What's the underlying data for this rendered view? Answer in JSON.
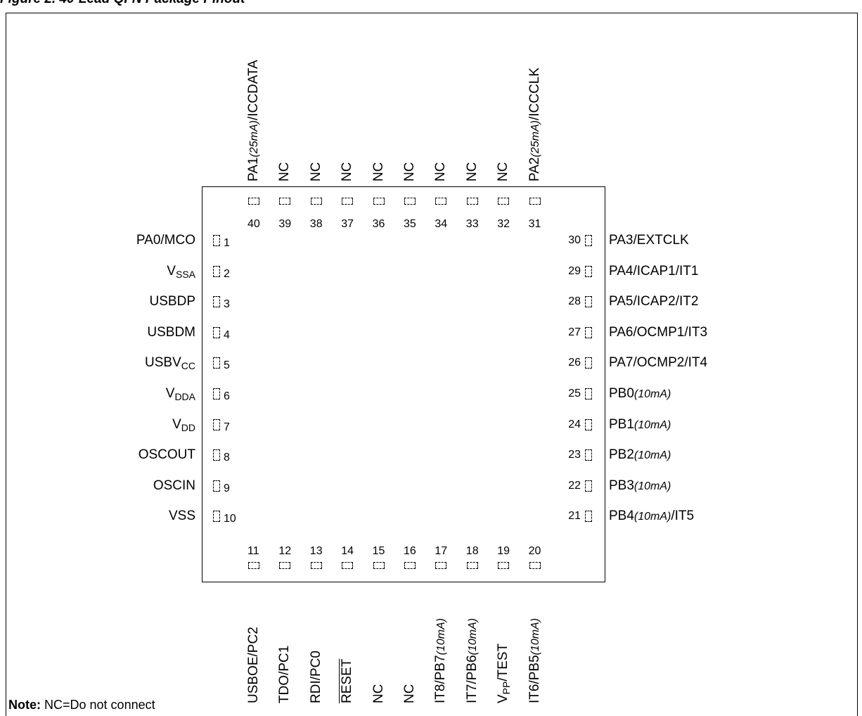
{
  "figure_title": "Figure 2. 40-Lead QFN Package Pinout",
  "note": {
    "label": "Note:",
    "text": "NC=Do not connect"
  },
  "pins": {
    "left": [
      {
        "num": "1",
        "parts": [
          [
            "PA0/MCO",
            ""
          ]
        ]
      },
      {
        "num": "2",
        "parts": [
          [
            "V",
            ""
          ],
          [
            "SSA",
            "sub"
          ]
        ]
      },
      {
        "num": "3",
        "parts": [
          [
            "USBDP",
            ""
          ]
        ]
      },
      {
        "num": "4",
        "parts": [
          [
            "USBDM",
            ""
          ]
        ]
      },
      {
        "num": "5",
        "parts": [
          [
            "USBV",
            ""
          ],
          [
            "CC",
            "sub"
          ]
        ]
      },
      {
        "num": "6",
        "parts": [
          [
            "V",
            ""
          ],
          [
            "DDA",
            "sub"
          ]
        ]
      },
      {
        "num": "7",
        "parts": [
          [
            "V",
            ""
          ],
          [
            "DD",
            "sub"
          ]
        ]
      },
      {
        "num": "8",
        "parts": [
          [
            "OSCOUT",
            ""
          ]
        ]
      },
      {
        "num": "9",
        "parts": [
          [
            "OSCIN",
            ""
          ]
        ]
      },
      {
        "num": "10",
        "parts": [
          [
            "VSS",
            ""
          ]
        ]
      }
    ],
    "bottom": [
      {
        "num": "11",
        "parts": [
          [
            "USBOE/PC2",
            ""
          ]
        ]
      },
      {
        "num": "12",
        "parts": [
          [
            "TDO/PC1",
            ""
          ]
        ]
      },
      {
        "num": "13",
        "parts": [
          [
            "RDI/PC0",
            ""
          ]
        ]
      },
      {
        "num": "14",
        "parts": [
          [
            "RESET",
            "ovl"
          ]
        ]
      },
      {
        "num": "15",
        "parts": [
          [
            "NC",
            ""
          ]
        ]
      },
      {
        "num": "16",
        "parts": [
          [
            "NC",
            ""
          ]
        ]
      },
      {
        "num": "17",
        "parts": [
          [
            "IT8/PB7",
            ""
          ],
          [
            "(10mA)",
            "it"
          ]
        ]
      },
      {
        "num": "18",
        "parts": [
          [
            "IT7/PB6",
            ""
          ],
          [
            "(10mA)",
            "it"
          ]
        ]
      },
      {
        "num": "19",
        "parts": [
          [
            "V",
            ""
          ],
          [
            "PP",
            "sub"
          ],
          [
            "/TEST",
            ""
          ]
        ]
      },
      {
        "num": "20",
        "parts": [
          [
            "IT6/PB5",
            ""
          ],
          [
            "(10mA)",
            "it"
          ]
        ]
      }
    ],
    "right": [
      {
        "num": "21",
        "parts": [
          [
            "PB4",
            ""
          ],
          [
            "(10mA)",
            "it"
          ],
          [
            "/IT5",
            ""
          ]
        ]
      },
      {
        "num": "22",
        "parts": [
          [
            "PB3",
            ""
          ],
          [
            "(10mA)",
            "it"
          ]
        ]
      },
      {
        "num": "23",
        "parts": [
          [
            "PB2",
            ""
          ],
          [
            "(10mA)",
            "it"
          ]
        ]
      },
      {
        "num": "24",
        "parts": [
          [
            "PB1",
            ""
          ],
          [
            "(10mA)",
            "it"
          ]
        ]
      },
      {
        "num": "25",
        "parts": [
          [
            "PB0",
            ""
          ],
          [
            "(10mA)",
            "it"
          ]
        ]
      },
      {
        "num": "26",
        "parts": [
          [
            "PA7/OCMP2/IT4",
            ""
          ]
        ]
      },
      {
        "num": "27",
        "parts": [
          [
            "PA6/OCMP1/IT3",
            ""
          ]
        ]
      },
      {
        "num": "28",
        "parts": [
          [
            "PA5/ICAP2/IT2",
            ""
          ]
        ]
      },
      {
        "num": "29",
        "parts": [
          [
            "PA4/ICAP1/IT1",
            ""
          ]
        ]
      },
      {
        "num": "30",
        "parts": [
          [
            "PA3/EXTCLK",
            ""
          ]
        ]
      }
    ],
    "top": [
      {
        "num": "31",
        "parts": [
          [
            "PA2",
            ""
          ],
          [
            "(25mA)",
            "it"
          ],
          [
            "/ICCCLK",
            ""
          ]
        ]
      },
      {
        "num": "32",
        "parts": [
          [
            "NC",
            ""
          ]
        ]
      },
      {
        "num": "33",
        "parts": [
          [
            "NC",
            ""
          ]
        ]
      },
      {
        "num": "34",
        "parts": [
          [
            "NC",
            ""
          ]
        ]
      },
      {
        "num": "35",
        "parts": [
          [
            "NC",
            ""
          ]
        ]
      },
      {
        "num": "36",
        "parts": [
          [
            "NC",
            ""
          ]
        ]
      },
      {
        "num": "37",
        "parts": [
          [
            "NC",
            ""
          ]
        ]
      },
      {
        "num": "38",
        "parts": [
          [
            "NC",
            ""
          ]
        ]
      },
      {
        "num": "39",
        "parts": [
          [
            "NC",
            ""
          ]
        ]
      },
      {
        "num": "40",
        "parts": [
          [
            "PA1",
            ""
          ],
          [
            "(25mA)",
            "it"
          ],
          [
            "/ICCDATA",
            ""
          ]
        ]
      }
    ]
  }
}
